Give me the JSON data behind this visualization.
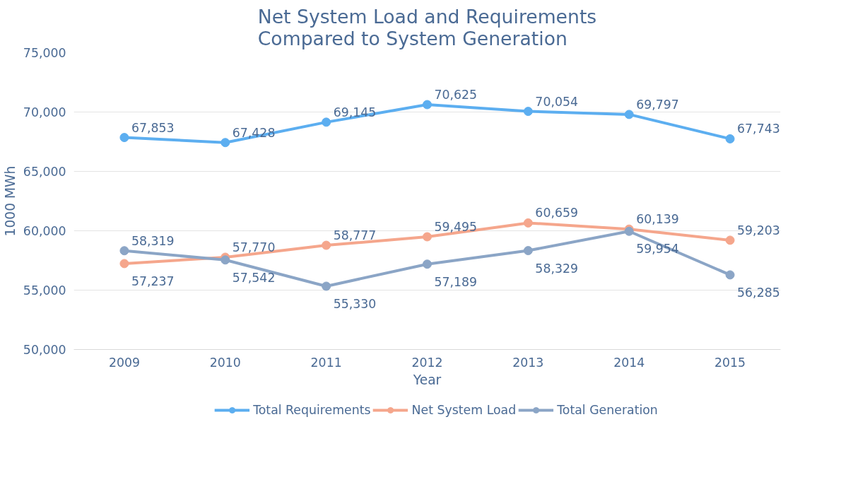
{
  "chart_data": {
    "type": "line",
    "title": "Net System Load and Requirements\nCompared to System Generation",
    "xlabel": "Year",
    "ylabel": "1000 MWh",
    "categories": [
      "2009",
      "2010",
      "2011",
      "2012",
      "2013",
      "2014",
      "2015"
    ],
    "series": [
      {
        "name": "Total Requirements",
        "color": "#5caef0",
        "values": [
          67853,
          67428,
          69145,
          70625,
          70054,
          69797,
          67743
        ],
        "value_labels": [
          "67,853",
          "67,428",
          "69,145",
          "70,625",
          "70,054",
          "69,797",
          "67,743"
        ]
      },
      {
        "name": "Net System Load",
        "color": "#f5a68c",
        "values": [
          57237,
          57770,
          58777,
          59495,
          60659,
          60139,
          59203
        ],
        "value_labels": [
          "57,237",
          "57,770",
          "58,777",
          "59,495",
          "60,659",
          "60,139",
          "59,203"
        ]
      },
      {
        "name": "Total Generation",
        "color": "#8ba5c6",
        "values": [
          58319,
          57542,
          55330,
          57189,
          58329,
          59954,
          56285
        ],
        "value_labels": [
          "58,319",
          "57,542",
          "55,330",
          "57,189",
          "58,329",
          "59,954",
          "56,285"
        ]
      }
    ],
    "ylim": [
      50000,
      75000
    ],
    "yticks": [
      {
        "value": 50000,
        "label": "50,000"
      },
      {
        "value": 55000,
        "label": "55,000"
      },
      {
        "value": 60000,
        "label": "60,000"
      },
      {
        "value": 65000,
        "label": "65,000"
      },
      {
        "value": 70000,
        "label": "70,000"
      },
      {
        "value": 75000,
        "label": "75,000"
      }
    ],
    "grid": "y",
    "legend": "bottom",
    "marker": "circle",
    "line_style": "solid"
  }
}
